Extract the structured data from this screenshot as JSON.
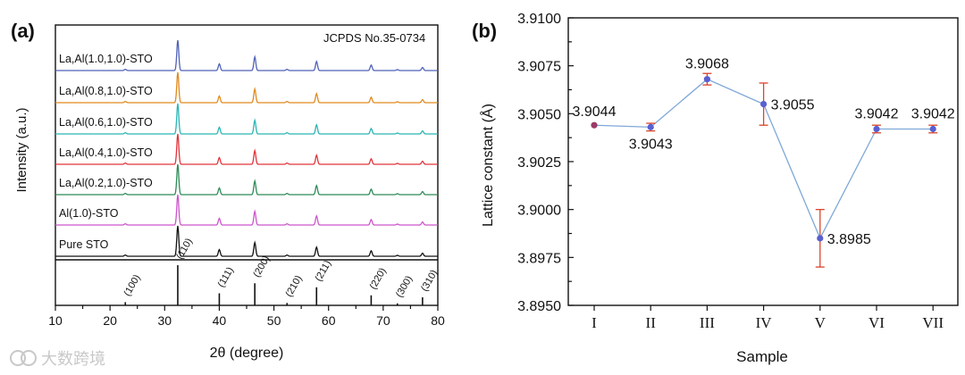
{
  "watermark": "大数跨境",
  "chart_data": [
    {
      "panel_label": "(a)",
      "type": "line",
      "title": "",
      "annotation": "JCPDS No.35-0734",
      "xlabel": "2θ (degree)",
      "ylabel": "Intensity (a.u.)",
      "xlim": [
        10,
        80
      ],
      "xticks": [
        "10",
        "20",
        "30",
        "40",
        "50",
        "60",
        "70",
        "80"
      ],
      "peak_positions": [
        22.8,
        32.4,
        40.0,
        46.5,
        52.4,
        57.8,
        67.8,
        72.6,
        77.2
      ],
      "peak_heights": [
        0.04,
        1.0,
        0.22,
        0.45,
        0.04,
        0.3,
        0.18,
        0.03,
        0.1
      ],
      "series": [
        {
          "name": "Pure STO",
          "color": "#111111"
        },
        {
          "name": "Al(1.0)-STO",
          "color": "#cc55cc"
        },
        {
          "name": "La,Al(0.2,1.0)-STO",
          "color": "#2e8b57"
        },
        {
          "name": "La,Al(0.4,1.0)-STO",
          "color": "#e0343a"
        },
        {
          "name": "La,Al(0.6,1.0)-STO",
          "color": "#2bb5b5"
        },
        {
          "name": "La,Al(0.8,1.0)-STO",
          "color": "#e08a1e"
        },
        {
          "name": "La,Al(1.0,1.0)-STO",
          "color": "#4f62b8"
        }
      ],
      "reference": {
        "positions": [
          22.8,
          32.4,
          40.0,
          46.5,
          52.4,
          57.8,
          67.8,
          72.6,
          77.2
        ],
        "heights": [
          0.08,
          1.0,
          0.3,
          0.55,
          0.06,
          0.45,
          0.25,
          0.05,
          0.2
        ],
        "labels": [
          "(100)",
          "(110)",
          "(111)",
          "(200)",
          "(210)",
          "(211)",
          "(220)",
          "(300)",
          "(310)"
        ]
      }
    },
    {
      "panel_label": "(b)",
      "type": "line",
      "title": "",
      "xlabel": "Sample",
      "ylabel": "Lattice constant (Å)",
      "categories": [
        "I",
        "II",
        "III",
        "IV",
        "V",
        "VI",
        "VII"
      ],
      "values": [
        3.9044,
        3.9043,
        3.9068,
        3.9055,
        3.8985,
        3.9042,
        3.9042
      ],
      "value_labels": [
        "3.9044",
        "3.9043",
        "3.9068",
        "3.9055",
        "3.8985",
        "3.9042",
        "3.9042"
      ],
      "errors": [
        0,
        0.0002,
        0.0003,
        0.0011,
        0.0015,
        0.0002,
        0.0002
      ],
      "ylim": [
        3.895,
        3.91
      ],
      "yticks": [
        "3.8950",
        "3.8975",
        "3.9000",
        "3.9025",
        "3.9050",
        "3.9075",
        "3.9100"
      ],
      "line_color": "#7fa8d8",
      "marker_color": "#5a5fd0",
      "first_marker_color": "#9b3a66",
      "error_color": "#d9442c"
    }
  ]
}
